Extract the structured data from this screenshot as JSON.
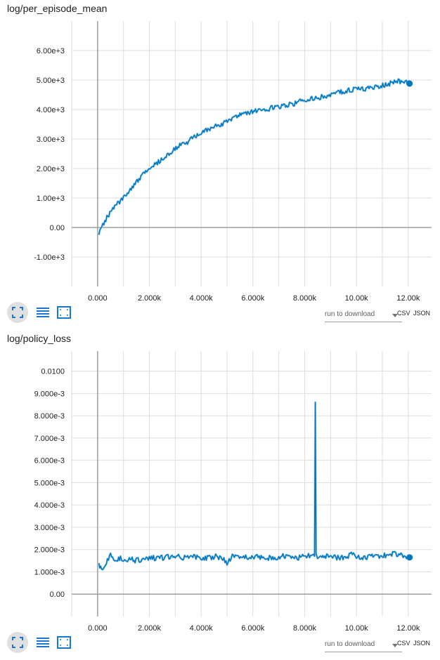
{
  "charts": [
    {
      "title": "log/per_episode_mean",
      "download": {
        "placeholder": "run to download",
        "csv": "CSV",
        "json": "JSON"
      }
    },
    {
      "title": "log/policy_loss",
      "download": {
        "placeholder": "run to download",
        "csv": "CSV",
        "json": "JSON"
      }
    }
  ],
  "icons": [
    "expand-icon",
    "data-table-icon",
    "fit-domain-icon"
  ],
  "colors": {
    "series": "#0277bd",
    "series_faint": "#b3d9f2",
    "grid": "#dddddd",
    "axis_zero": "#9e9e9e",
    "toolbar_active": "#e0e0e0",
    "icon": "#1976d2"
  },
  "chart_data": [
    {
      "type": "line",
      "title": "",
      "xlabel": "",
      "ylabel": "",
      "xlim": [
        -1000,
        12900
      ],
      "ylim": [
        -2000,
        7000
      ],
      "x_ticks": [
        0,
        2000,
        4000,
        6000,
        8000,
        10000,
        12000
      ],
      "x_tick_labels": [
        "0.000",
        "2.000k",
        "4.000k",
        "6.000k",
        "8.000k",
        "10.00k",
        "12.00k"
      ],
      "y_ticks": [
        -1000,
        0,
        1000,
        2000,
        3000,
        4000,
        5000,
        6000
      ],
      "y_tick_labels": [
        "-1.00e+3",
        "0.00",
        "1.00e+3",
        "2.00e+3",
        "3.00e+3",
        "4.00e+3",
        "5.00e+3",
        "6.00e+3"
      ],
      "grid": true,
      "series": [
        {
          "x": [
            50,
            200,
            400,
            700,
            1000,
            1300,
            1600,
            1900,
            2200,
            2500,
            2800,
            3100,
            3400,
            3700,
            4000,
            4300,
            4600,
            4900,
            5200,
            5500,
            5800,
            6100,
            6400,
            6700,
            7000,
            7300,
            7600,
            7900,
            8200,
            8500,
            8800,
            9100,
            9400,
            9700,
            10000,
            10300,
            10600,
            10900,
            11200,
            11500,
            11800,
            12050
          ],
          "y": [
            -200,
            100,
            400,
            750,
            1000,
            1350,
            1650,
            1950,
            2150,
            2300,
            2550,
            2750,
            2850,
            3050,
            3200,
            3350,
            3450,
            3550,
            3700,
            3850,
            3900,
            3950,
            3950,
            4050,
            4100,
            4150,
            4200,
            4300,
            4350,
            4400,
            4450,
            4550,
            4600,
            4650,
            4700,
            4700,
            4750,
            4800,
            4850,
            4950,
            4950,
            4880
          ]
        }
      ]
    },
    {
      "type": "line",
      "title": "",
      "xlabel": "",
      "ylabel": "",
      "xlim": [
        -1000,
        12900
      ],
      "ylim": [
        -0.001,
        0.0109
      ],
      "x_ticks": [
        0,
        2000,
        4000,
        6000,
        8000,
        10000,
        12000
      ],
      "x_tick_labels": [
        "0.000",
        "2.000k",
        "4.000k",
        "6.000k",
        "8.000k",
        "10.00k",
        "12.00k"
      ],
      "y_ticks": [
        0,
        0.001,
        0.002,
        0.003,
        0.004,
        0.005,
        0.006,
        0.007,
        0.008,
        0.009,
        0.01
      ],
      "y_tick_labels": [
        "0.00",
        "1.000e-3",
        "2.000e-3",
        "3.000e-3",
        "4.000e-3",
        "5.000e-3",
        "6.000e-3",
        "7.000e-3",
        "8.000e-3",
        "9.000e-3",
        "0.0100"
      ],
      "grid": true,
      "series": [
        {
          "x": [
            50,
            150,
            300,
            500,
            700,
            1000,
            1300,
            1600,
            2000,
            2400,
            2800,
            3200,
            3600,
            4000,
            4400,
            4800,
            5000,
            5200,
            5600,
            6000,
            6400,
            6800,
            7200,
            7600,
            8000,
            8300,
            8380,
            8410,
            8440,
            8500,
            8700,
            9000,
            9400,
            9800,
            10200,
            10600,
            11000,
            11400,
            11800,
            12050
          ],
          "y": [
            0.00135,
            0.0011,
            0.0014,
            0.00175,
            0.00155,
            0.0016,
            0.00155,
            0.0015,
            0.00165,
            0.0016,
            0.0017,
            0.00165,
            0.0017,
            0.0016,
            0.00165,
            0.0017,
            0.0014,
            0.00175,
            0.00165,
            0.0017,
            0.00165,
            0.0016,
            0.0017,
            0.0016,
            0.0017,
            0.00175,
            0.0017,
            0.0086,
            0.0018,
            0.0017,
            0.00165,
            0.0017,
            0.0016,
            0.00175,
            0.00165,
            0.0017,
            0.00175,
            0.0018,
            0.0017,
            0.00165
          ]
        }
      ]
    }
  ]
}
